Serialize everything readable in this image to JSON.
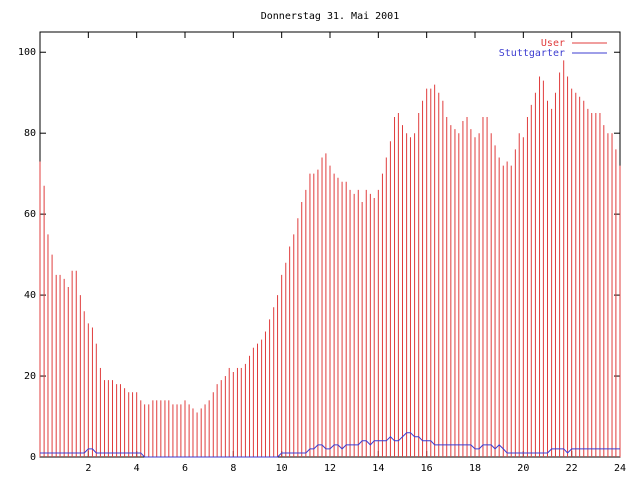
{
  "chart_data": {
    "type": "line",
    "title": "Donnerstag 31. Mai 2001",
    "xlim": [
      0,
      24
    ],
    "ylim": [
      0,
      105
    ],
    "xticks": [
      2,
      4,
      6,
      8,
      10,
      12,
      14,
      16,
      18,
      20,
      22,
      24
    ],
    "yticks": [
      0,
      20,
      40,
      60,
      80,
      100
    ],
    "x": [
      0,
      0.17,
      0.33,
      0.5,
      0.67,
      0.83,
      1,
      1.17,
      1.33,
      1.5,
      1.67,
      1.83,
      2,
      2.17,
      2.33,
      2.5,
      2.67,
      2.83,
      3,
      3.17,
      3.33,
      3.5,
      3.67,
      3.83,
      4,
      4.17,
      4.33,
      4.5,
      4.67,
      4.83,
      5,
      5.17,
      5.33,
      5.5,
      5.67,
      5.83,
      6,
      6.17,
      6.33,
      6.5,
      6.67,
      6.83,
      7,
      7.17,
      7.33,
      7.5,
      7.67,
      7.83,
      8,
      8.17,
      8.33,
      8.5,
      8.67,
      8.83,
      9,
      9.17,
      9.33,
      9.5,
      9.67,
      9.83,
      10,
      10.17,
      10.33,
      10.5,
      10.67,
      10.83,
      11,
      11.17,
      11.33,
      11.5,
      11.67,
      11.83,
      12,
      12.17,
      12.33,
      12.5,
      12.67,
      12.83,
      13,
      13.17,
      13.33,
      13.5,
      13.67,
      13.83,
      14,
      14.17,
      14.33,
      14.5,
      14.67,
      14.83,
      15,
      15.17,
      15.33,
      15.5,
      15.67,
      15.83,
      16,
      16.17,
      16.33,
      16.5,
      16.67,
      16.83,
      17,
      17.17,
      17.33,
      17.5,
      17.67,
      17.83,
      18,
      18.17,
      18.33,
      18.5,
      18.67,
      18.83,
      19,
      19.17,
      19.33,
      19.5,
      19.67,
      19.83,
      20,
      20.17,
      20.33,
      20.5,
      20.67,
      20.83,
      21,
      21.17,
      21.33,
      21.5,
      21.67,
      21.83,
      22,
      22.17,
      22.33,
      22.5,
      22.67,
      22.83,
      23,
      23.17,
      23.33,
      23.5,
      23.67,
      23.83,
      24
    ],
    "series": [
      {
        "name": "User",
        "color": "#e03c3c",
        "style": "impulses",
        "values": [
          73,
          67,
          55,
          50,
          45,
          45,
          44,
          42,
          46,
          46,
          40,
          36,
          33,
          32,
          28,
          22,
          19,
          19,
          19,
          18,
          18,
          17,
          16,
          16,
          16,
          14,
          13,
          13,
          14,
          14,
          14,
          14,
          14,
          13,
          13,
          13,
          14,
          13,
          12,
          11,
          12,
          13,
          14,
          16,
          18,
          19,
          20,
          22,
          21,
          22,
          22,
          23,
          25,
          27,
          28,
          29,
          31,
          34,
          37,
          40,
          45,
          48,
          52,
          55,
          59,
          63,
          66,
          70,
          70,
          71,
          74,
          75,
          72,
          70,
          69,
          68,
          68,
          66,
          65,
          66,
          63,
          66,
          65,
          64,
          66,
          70,
          74,
          78,
          84,
          85,
          82,
          80,
          79,
          80,
          85,
          88,
          91,
          91,
          92,
          90,
          88,
          84,
          82,
          81,
          80,
          83,
          84,
          81,
          79,
          80,
          84,
          84,
          80,
          77,
          74,
          72,
          73,
          72,
          76,
          80,
          79,
          84,
          87,
          90,
          94,
          93,
          88,
          86,
          90,
          95,
          98,
          94,
          91,
          90,
          89,
          88,
          86,
          85,
          85,
          85,
          82,
          80,
          80,
          76,
          72
        ]
      },
      {
        "name": "Stuttgarter",
        "color": "#3c3cd0",
        "style": "lines",
        "values": [
          1,
          1,
          1,
          1,
          1,
          1,
          1,
          1,
          1,
          1,
          1,
          1,
          2,
          2,
          1,
          1,
          1,
          1,
          1,
          1,
          1,
          1,
          1,
          1,
          1,
          1,
          0,
          0,
          0,
          0,
          0,
          0,
          0,
          0,
          0,
          0,
          0,
          0,
          0,
          0,
          0,
          0,
          0,
          0,
          0,
          0,
          0,
          0,
          0,
          0,
          0,
          0,
          0,
          0,
          0,
          0,
          0,
          0,
          0,
          0,
          1,
          1,
          1,
          1,
          1,
          1,
          1,
          2,
          2,
          3,
          3,
          2,
          2,
          3,
          3,
          2,
          3,
          3,
          3,
          3,
          4,
          4,
          3,
          4,
          4,
          4,
          4,
          5,
          4,
          4,
          5,
          6,
          6,
          5,
          5,
          4,
          4,
          4,
          3,
          3,
          3,
          3,
          3,
          3,
          3,
          3,
          3,
          3,
          2,
          2,
          3,
          3,
          3,
          2,
          3,
          2,
          1,
          1,
          1,
          1,
          1,
          1,
          1,
          1,
          1,
          1,
          1,
          2,
          2,
          2,
          2,
          1,
          2,
          2,
          2,
          2,
          2,
          2,
          2,
          2,
          2,
          2,
          2,
          2,
          2
        ]
      }
    ]
  }
}
